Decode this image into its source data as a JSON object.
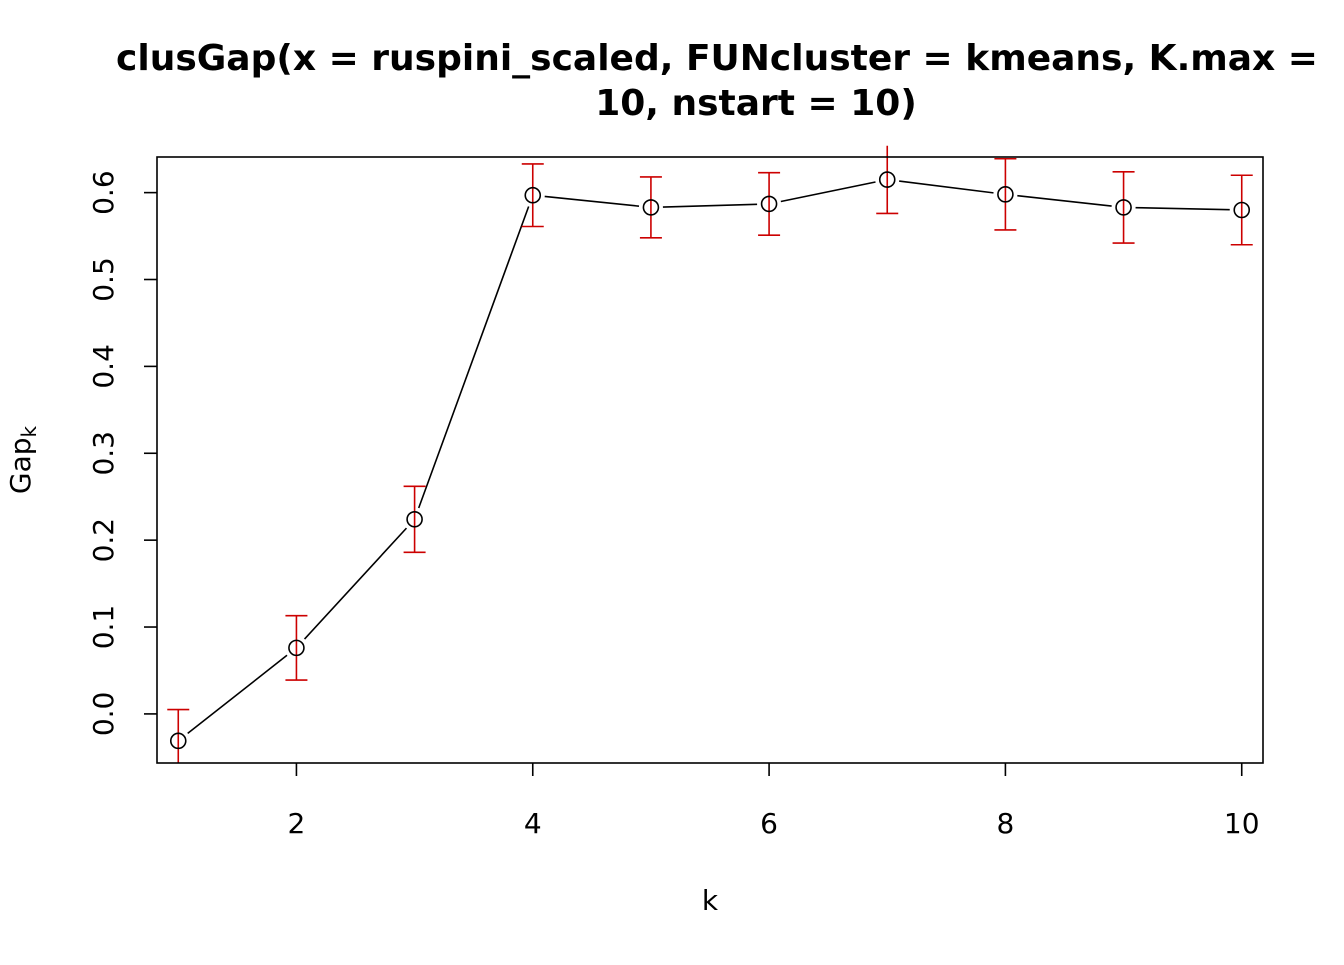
{
  "chart_data": {
    "type": "scatter",
    "title_line1": "clusGap(x = ruspini_scaled, FUNcluster = kmeans, K.max =",
    "title_line2": "10, nstart = 10)",
    "xlabel": "k",
    "ylabel_main": "Gap",
    "ylabel_sub": "k",
    "xlim": [
      0.82,
      10.18
    ],
    "ylim": [
      -0.0565,
      0.641
    ],
    "x_ticks": [
      2,
      4,
      6,
      8,
      10
    ],
    "x_tick_labels": [
      "2",
      "4",
      "6",
      "8",
      "10"
    ],
    "y_ticks": [
      0.0,
      0.1,
      0.2,
      0.3,
      0.4,
      0.5,
      0.6
    ],
    "y_tick_labels": [
      "0.0",
      "0.1",
      "0.2",
      "0.3",
      "0.4",
      "0.5",
      "0.6"
    ],
    "x": [
      1,
      2,
      3,
      4,
      5,
      6,
      7,
      8,
      9,
      10
    ],
    "gap": [
      -0.031,
      0.076,
      0.224,
      0.597,
      0.583,
      0.587,
      0.615,
      0.598,
      0.583,
      0.58
    ],
    "se": [
      0.036,
      0.037,
      0.038,
      0.036,
      0.035,
      0.036,
      0.039,
      0.041,
      0.041,
      0.04
    ],
    "grid": false,
    "colors": {
      "line": "#000000",
      "points": "#000000",
      "error_bars": "#cc0000",
      "frame": "#000000"
    }
  }
}
